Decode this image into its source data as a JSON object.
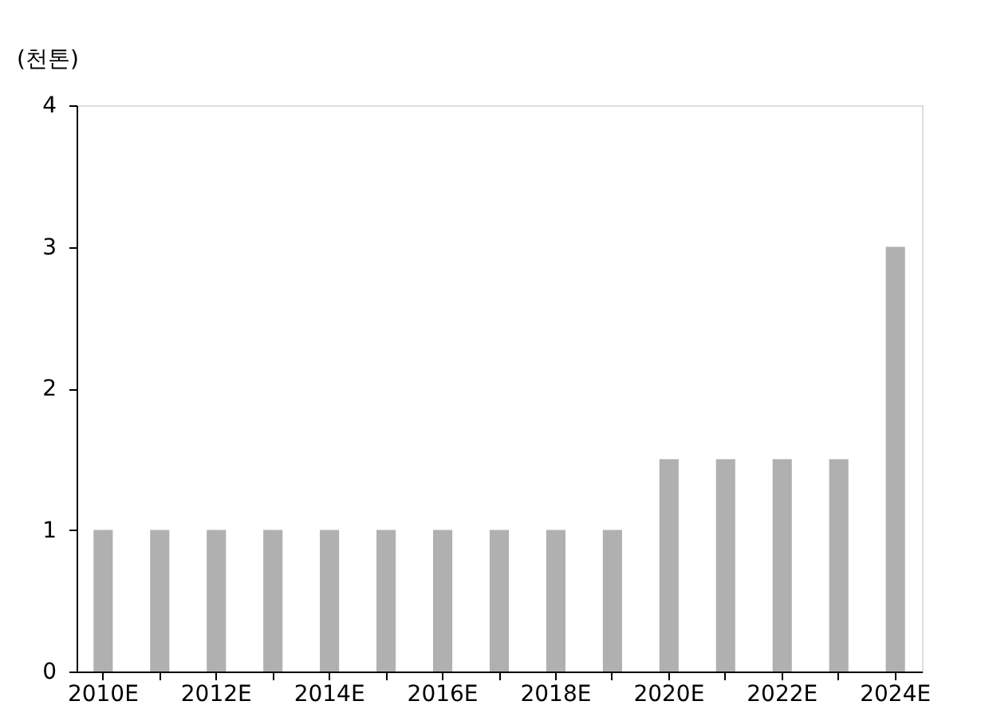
{
  "chart_data": {
    "type": "bar",
    "ylabel": "(천톤)",
    "categories": [
      "2010E",
      null,
      "2012E",
      null,
      "2014E",
      null,
      "2016E",
      null,
      "2018E",
      null,
      "2020E",
      null,
      "2022E",
      null,
      "2024E"
    ],
    "values": [
      1,
      1,
      1,
      1,
      1,
      1,
      1,
      1,
      1,
      1,
      1.5,
      1.5,
      1.5,
      1.5,
      3
    ],
    "color": "#b0b0b0",
    "ylim": [
      0,
      4
    ],
    "yticks": [
      0,
      1,
      2,
      3,
      4
    ],
    "grid": false
  }
}
